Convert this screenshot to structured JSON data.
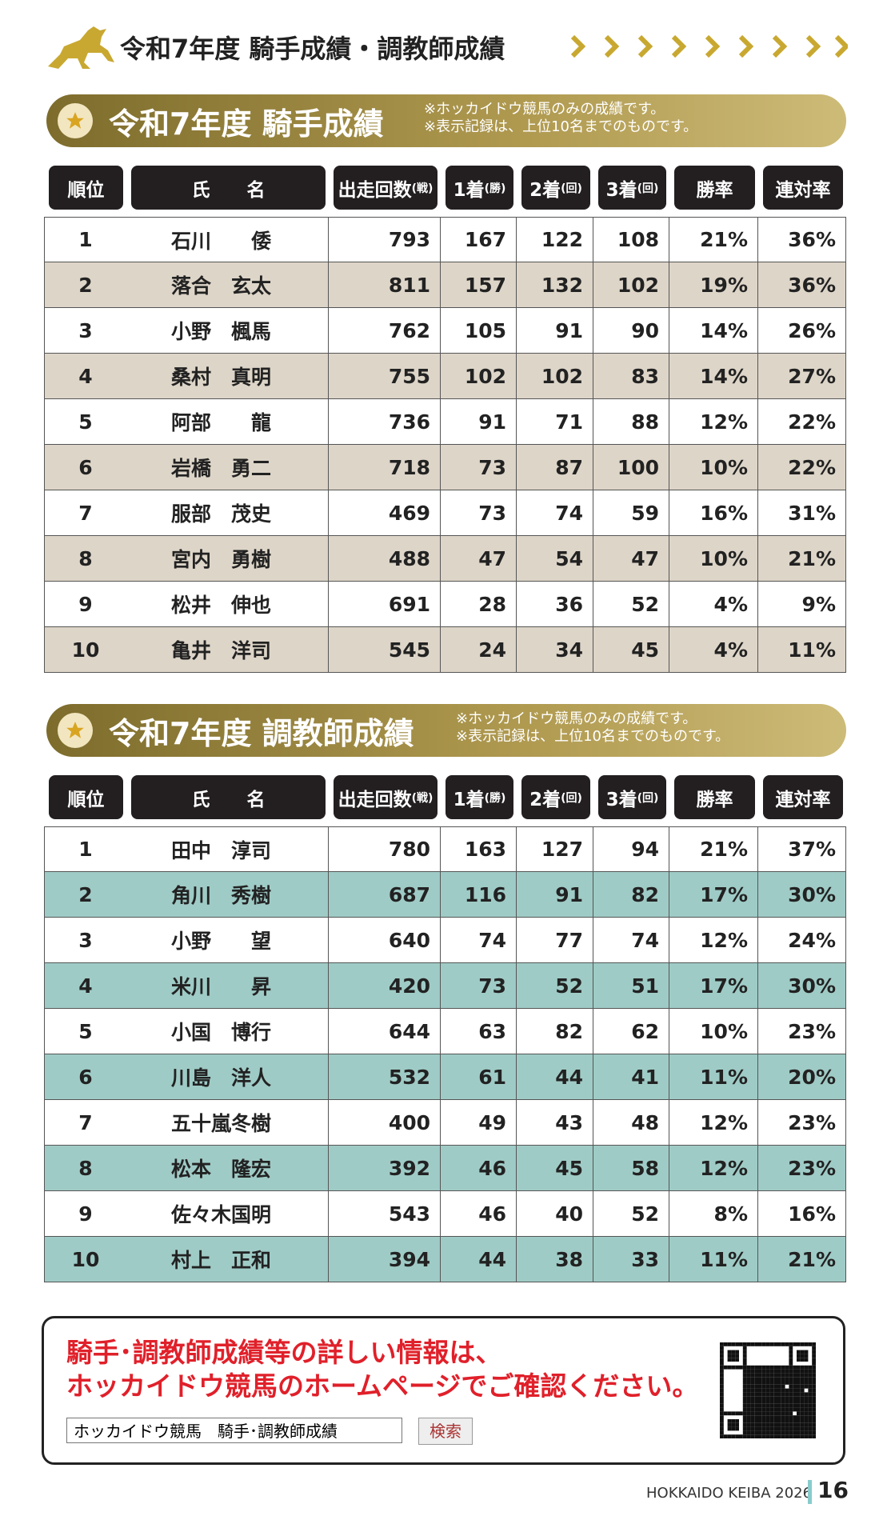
{
  "header": {
    "title": "令和7年度 騎手成績・調教師成績"
  },
  "sections": [
    {
      "title": "令和7年度 騎手成績",
      "notes": [
        "※ホッカイドウ競馬のみの成績です。",
        "※表示記録は、上位10名までのものです。"
      ],
      "columns": [
        {
          "label": "順位"
        },
        {
          "label": "氏　　名"
        },
        {
          "label": "出走回数",
          "unit": "(戦)"
        },
        {
          "label": "1着",
          "unit": "(勝)"
        },
        {
          "label": "2着",
          "unit": "(回)"
        },
        {
          "label": "3着",
          "unit": "(回)"
        },
        {
          "label": "勝率"
        },
        {
          "label": "連対率"
        }
      ],
      "rows": [
        [
          1,
          "石川　　倭",
          793,
          167,
          122,
          108,
          "21%",
          "36%"
        ],
        [
          2,
          "落合　玄太",
          811,
          157,
          132,
          102,
          "19%",
          "36%"
        ],
        [
          3,
          "小野　楓馬",
          762,
          105,
          91,
          90,
          "14%",
          "26%"
        ],
        [
          4,
          "桑村　真明",
          755,
          102,
          102,
          83,
          "14%",
          "27%"
        ],
        [
          5,
          "阿部　　龍",
          736,
          91,
          71,
          88,
          "12%",
          "22%"
        ],
        [
          6,
          "岩橋　勇二",
          718,
          73,
          87,
          100,
          "10%",
          "22%"
        ],
        [
          7,
          "服部　茂史",
          469,
          73,
          74,
          59,
          "16%",
          "31%"
        ],
        [
          8,
          "宮内　勇樹",
          488,
          47,
          54,
          47,
          "10%",
          "21%"
        ],
        [
          9,
          "松井　伸也",
          691,
          28,
          36,
          52,
          "4%",
          "9%"
        ],
        [
          10,
          "亀井　洋司",
          545,
          24,
          34,
          45,
          "4%",
          "11%"
        ]
      ]
    },
    {
      "title": "令和7年度 調教師成績",
      "notes": [
        "※ホッカイドウ競馬のみの成績です。",
        "※表示記録は、上位10名までのものです。"
      ],
      "columns": [
        {
          "label": "順位"
        },
        {
          "label": "氏　　名"
        },
        {
          "label": "出走回数",
          "unit": "(戦)"
        },
        {
          "label": "1着",
          "unit": "(勝)"
        },
        {
          "label": "2着",
          "unit": "(回)"
        },
        {
          "label": "3着",
          "unit": "(回)"
        },
        {
          "label": "勝率"
        },
        {
          "label": "連対率"
        }
      ],
      "rows": [
        [
          1,
          "田中　淳司",
          780,
          163,
          127,
          94,
          "21%",
          "37%"
        ],
        [
          2,
          "角川　秀樹",
          687,
          116,
          91,
          82,
          "17%",
          "30%"
        ],
        [
          3,
          "小野　　望",
          640,
          74,
          77,
          74,
          "12%",
          "24%"
        ],
        [
          4,
          "米川　　昇",
          420,
          73,
          52,
          51,
          "17%",
          "30%"
        ],
        [
          5,
          "小国　博行",
          644,
          63,
          82,
          62,
          "10%",
          "23%"
        ],
        [
          6,
          "川島　洋人",
          532,
          61,
          44,
          41,
          "11%",
          "20%"
        ],
        [
          7,
          "五十嵐冬樹",
          400,
          49,
          43,
          48,
          "12%",
          "23%"
        ],
        [
          8,
          "松本　隆宏",
          392,
          46,
          45,
          58,
          "12%",
          "23%"
        ],
        [
          9,
          "佐々木国明",
          543,
          46,
          40,
          52,
          "8%",
          "16%"
        ],
        [
          10,
          "村上　正和",
          394,
          44,
          38,
          33,
          "11%",
          "21%"
        ]
      ]
    }
  ],
  "info": {
    "lines": [
      "騎手･調教師成績等の詳しい情報は、",
      "ホッカイドウ競馬のホームページでご確認ください。"
    ],
    "search_text": "ホッカイドウ競馬　騎手･調教師成績",
    "button": "検索"
  },
  "footer": {
    "brand": "HOKKAIDO KEIBA 2026",
    "page": "16"
  }
}
